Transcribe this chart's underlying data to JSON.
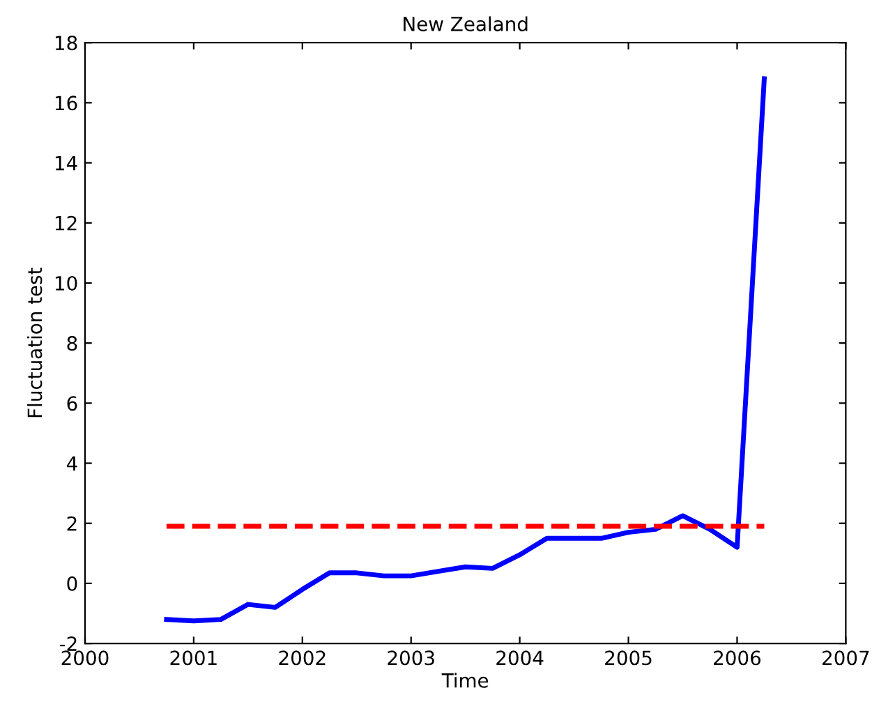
{
  "chart_data": {
    "type": "line",
    "title": "New Zealand",
    "xlabel": "Time",
    "ylabel": "Fluctuation test",
    "xlim": [
      2000,
      2007
    ],
    "xticks": [
      2000,
      2001,
      2002,
      2003,
      2004,
      2005,
      2006,
      2007
    ],
    "ylim": [
      -2,
      18
    ],
    "yticks": [
      -2,
      0,
      2,
      4,
      6,
      8,
      10,
      12,
      14,
      16,
      18
    ],
    "grid": false,
    "legend": false,
    "marker": "none",
    "series": [
      {
        "color": "#0000ff",
        "line_style": "solid",
        "x": [
          2000.75,
          2001.0,
          2001.25,
          2001.5,
          2001.75,
          2002.0,
          2002.25,
          2002.5,
          2002.75,
          2003.0,
          2003.25,
          2003.5,
          2003.75,
          2004.0,
          2004.25,
          2004.5,
          2004.75,
          2005.0,
          2005.25,
          2005.5,
          2005.75,
          2006.0,
          2006.25
        ],
        "values": [
          -1.2,
          -1.25,
          -1.2,
          -0.7,
          -0.8,
          -0.2,
          0.35,
          0.35,
          0.25,
          0.25,
          0.4,
          0.55,
          0.5,
          0.95,
          1.5,
          1.5,
          1.5,
          1.7,
          1.8,
          2.25,
          1.8,
          1.2,
          16.8
        ]
      },
      {
        "color": "#ff0000",
        "line_style": "dashed",
        "x": [
          2000.75,
          2006.25
        ],
        "values": [
          1.9,
          1.9
        ]
      }
    ]
  }
}
